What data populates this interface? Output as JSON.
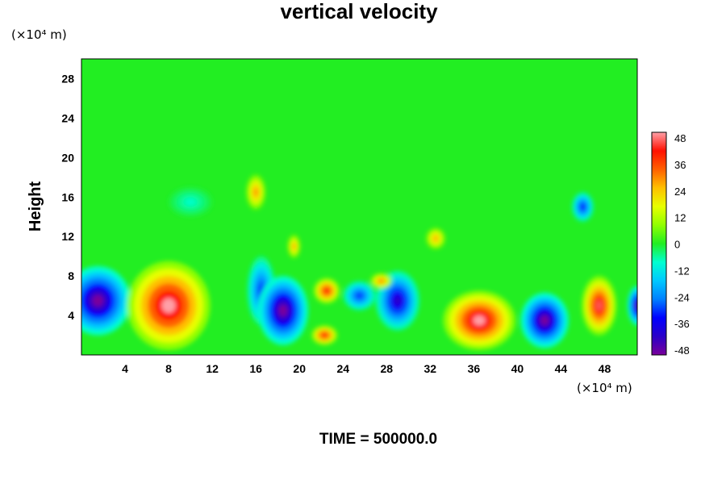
{
  "chart_data": {
    "type": "heatmap",
    "title": "vertical velocity",
    "ylabel": "Height",
    "xlabel": "",
    "x_unit": "(×10⁴ m)",
    "y_unit": "(×10⁴ m)",
    "xlim": [
      0,
      51
    ],
    "ylim": [
      0,
      30
    ],
    "x_ticks": [
      4,
      8,
      12,
      16,
      20,
      24,
      28,
      32,
      36,
      40,
      44,
      48
    ],
    "y_ticks": [
      4,
      8,
      12,
      16,
      20,
      24,
      28
    ],
    "colorbar": {
      "min": -48,
      "max": 48,
      "ticks": [
        48,
        36,
        24,
        12,
        0,
        -12,
        -24,
        -36,
        -48
      ]
    },
    "features": [
      {
        "x": 1.5,
        "y": 5.5,
        "rx": 3.0,
        "ry": 3.5,
        "value": -48
      },
      {
        "x": 8.0,
        "y": 5.0,
        "rx": 3.8,
        "ry": 4.5,
        "value": 48
      },
      {
        "x": 16.5,
        "y": 6.5,
        "rx": 1.3,
        "ry": 3.5,
        "value": -30
      },
      {
        "x": 18.5,
        "y": 4.5,
        "rx": 2.3,
        "ry": 3.5,
        "value": -48
      },
      {
        "x": 22.5,
        "y": 6.5,
        "rx": 1.2,
        "ry": 1.3,
        "value": 40
      },
      {
        "x": 22.3,
        "y": 2.0,
        "rx": 1.2,
        "ry": 1.0,
        "value": 40
      },
      {
        "x": 25.5,
        "y": 6.0,
        "rx": 1.5,
        "ry": 1.5,
        "value": -30
      },
      {
        "x": 29.0,
        "y": 5.5,
        "rx": 2.0,
        "ry": 3.0,
        "value": -40
      },
      {
        "x": 27.5,
        "y": 7.5,
        "rx": 1.0,
        "ry": 0.8,
        "value": 30
      },
      {
        "x": 36.5,
        "y": 3.5,
        "rx": 3.3,
        "ry": 3.0,
        "value": 48
      },
      {
        "x": 42.5,
        "y": 3.5,
        "rx": 2.2,
        "ry": 2.8,
        "value": -48
      },
      {
        "x": 47.5,
        "y": 5.0,
        "rx": 1.6,
        "ry": 3.0,
        "value": 44
      },
      {
        "x": 51.0,
        "y": 5.0,
        "rx": 0.9,
        "ry": 2.0,
        "value": -44
      },
      {
        "x": 16.0,
        "y": 16.5,
        "rx": 0.9,
        "ry": 1.8,
        "value": 28
      },
      {
        "x": 32.5,
        "y": 11.8,
        "rx": 0.9,
        "ry": 1.1,
        "value": 26
      },
      {
        "x": 46.0,
        "y": 15.0,
        "rx": 1.0,
        "ry": 1.5,
        "value": -32
      },
      {
        "x": 19.5,
        "y": 11.0,
        "rx": 0.6,
        "ry": 1.2,
        "value": 26
      },
      {
        "x": 10.0,
        "y": 15.5,
        "rx": 2.0,
        "ry": 1.5,
        "value": -8
      }
    ]
  },
  "footer": {
    "time_label": "TIME = 500000.0"
  },
  "colors": {
    "background_field": "#22ee22",
    "frame": "#000000"
  }
}
